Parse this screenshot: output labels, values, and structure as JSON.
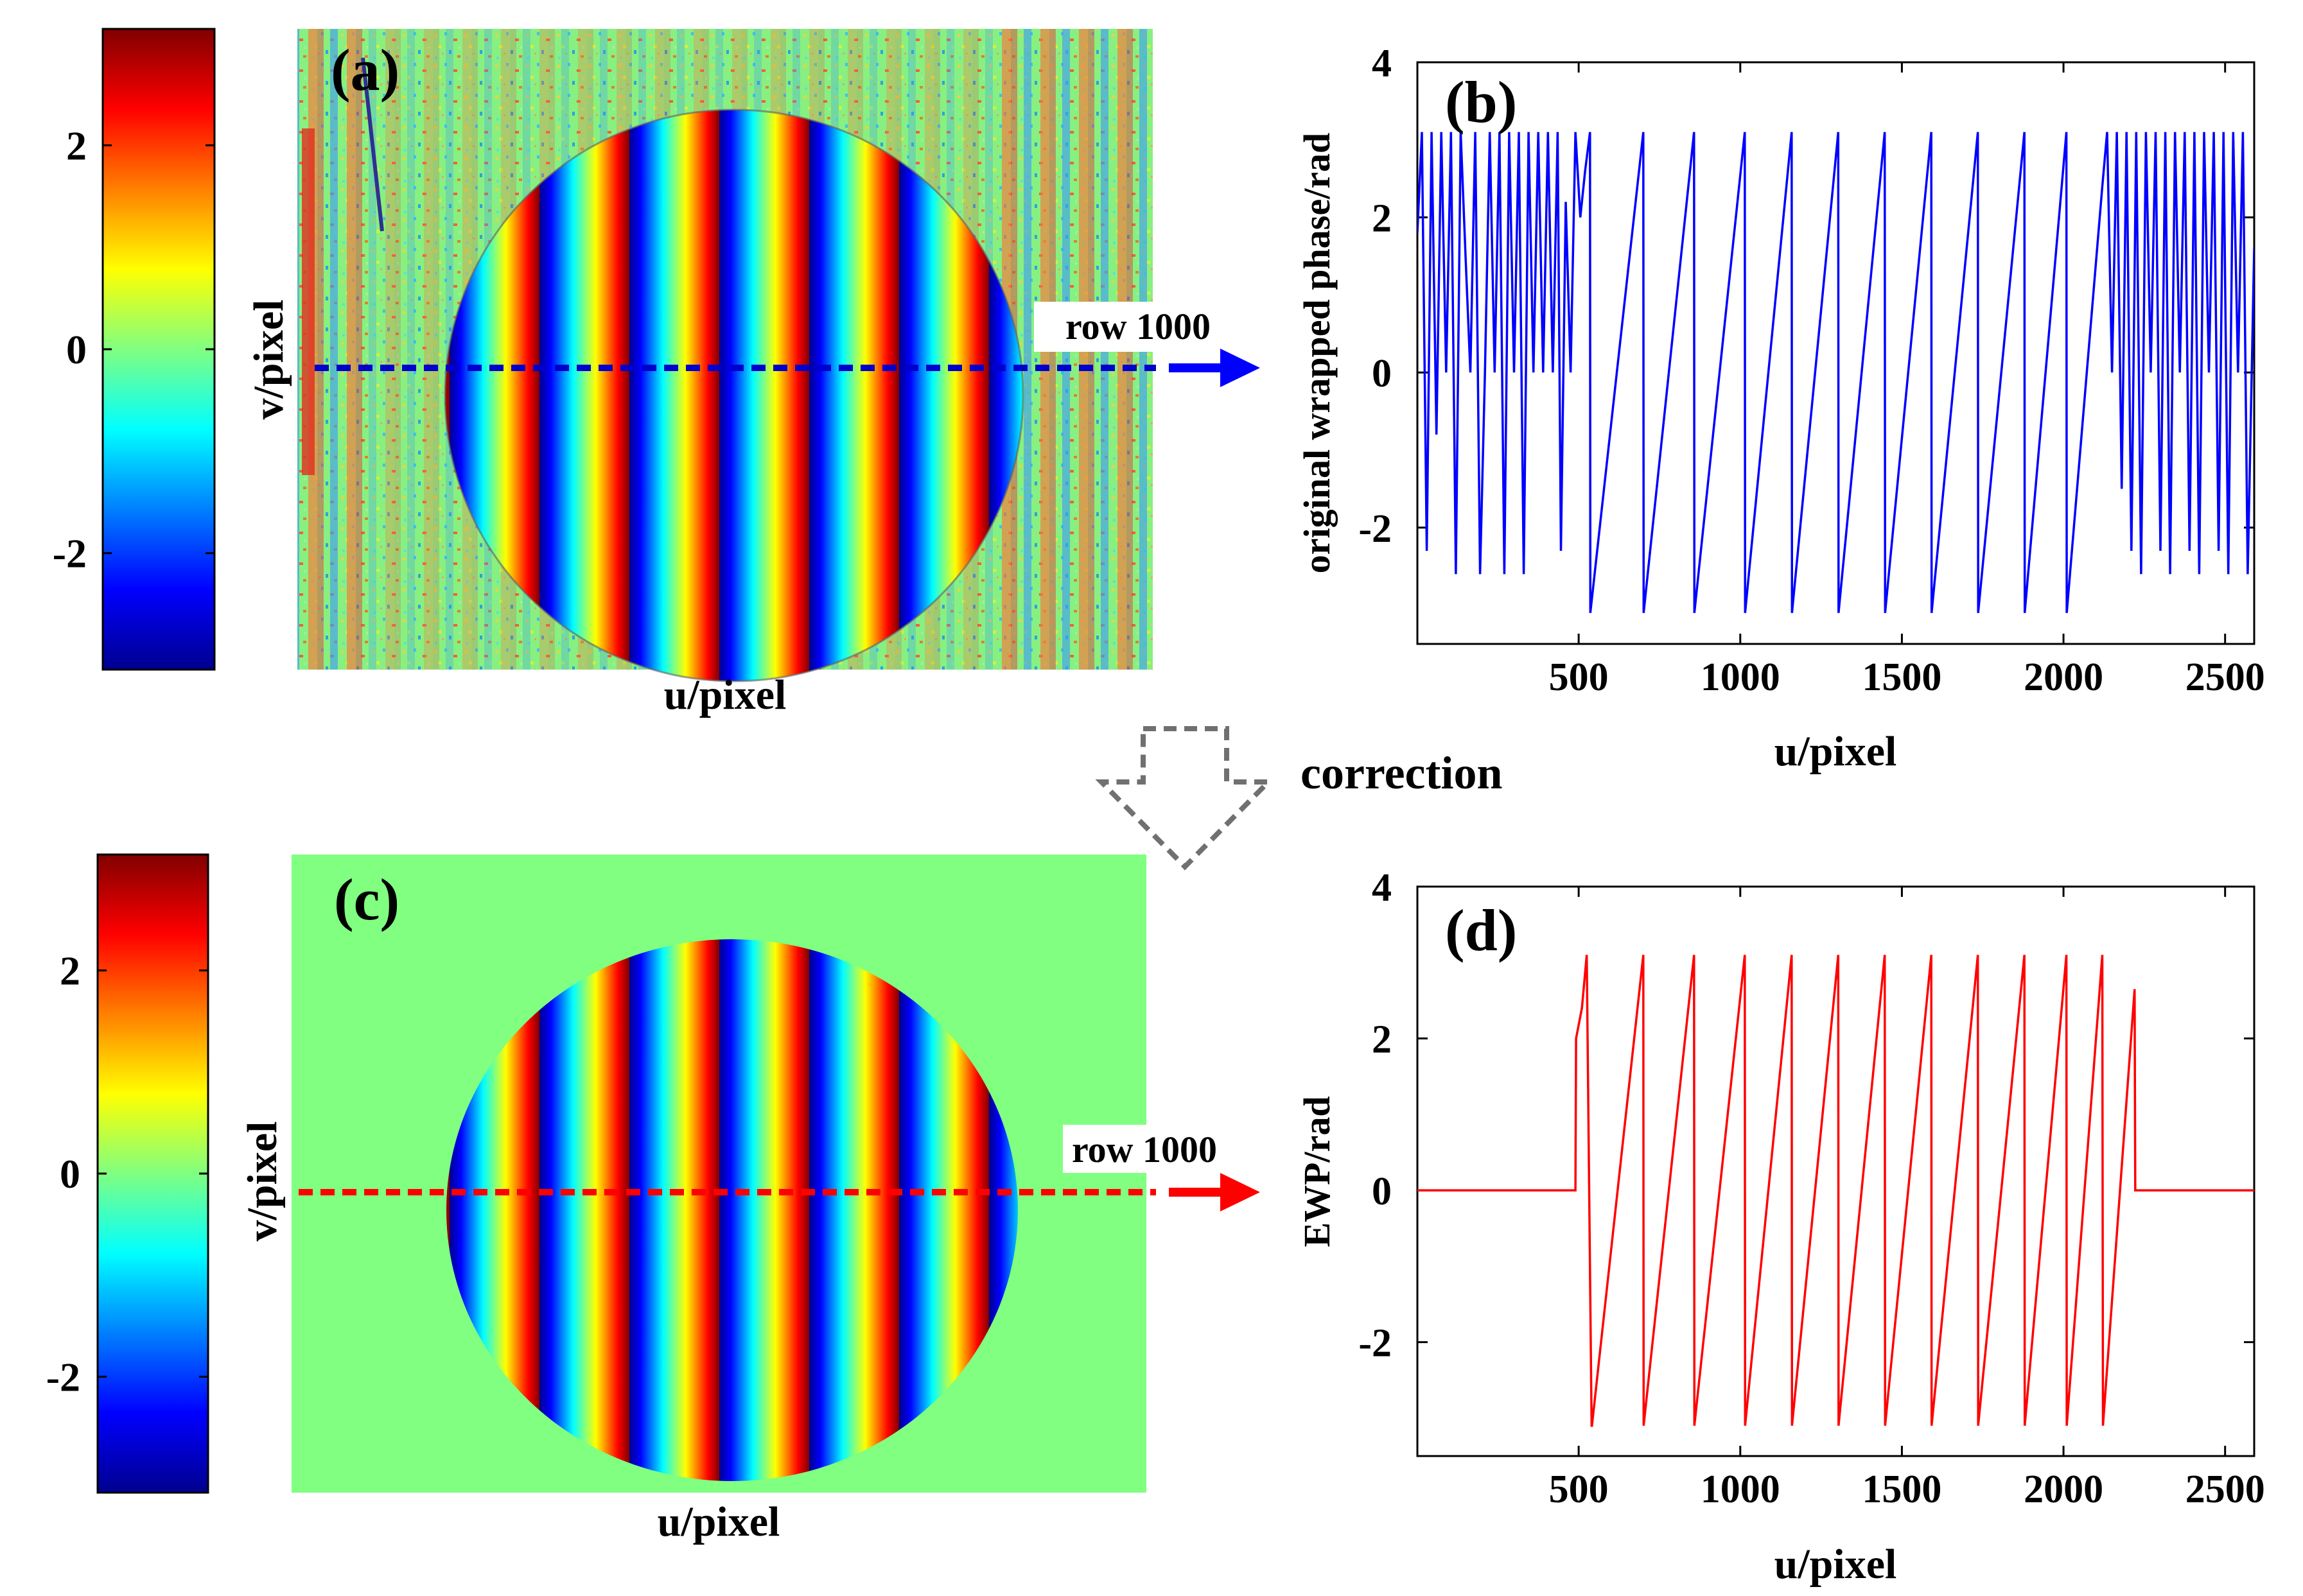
{
  "figure": {
    "correction_label": "correction",
    "colorbar": {
      "ticks": [
        "2",
        "0",
        "-2"
      ],
      "tick_values": [
        2,
        0,
        -2
      ],
      "range": [
        -3.1416,
        3.1416
      ]
    }
  },
  "panel_a": {
    "label": "(a)",
    "xlabel": "u/pixel",
    "ylabel": "v/pixel",
    "row_label": "row 1000",
    "line_color": "#0000cc"
  },
  "panel_c": {
    "label": "(c)",
    "xlabel": "u/pixel",
    "ylabel": "v/pixel",
    "row_label": "row 1000",
    "line_color": "#ff0000"
  },
  "chart_data": [
    {
      "id": "b",
      "type": "line",
      "label": "(b)",
      "xlabel": "u/pixel",
      "ylabel": "original wrapped phase/rad",
      "xlim": [
        1,
        2590
      ],
      "ylim": [
        -3.5,
        4
      ],
      "xticks": [
        500,
        1000,
        1500,
        2000,
        2500
      ],
      "yticks": [
        -2,
        0,
        2,
        4
      ],
      "color": "#0000ff",
      "series": [
        {
          "name": "original wrapped phase, row 1000",
          "x": [
            1,
            15,
            30,
            45,
            60,
            75,
            90,
            105,
            120,
            135,
            150,
            165,
            180,
            195,
            210,
            225,
            240,
            255,
            270,
            285,
            300,
            315,
            330,
            345,
            360,
            375,
            390,
            405,
            420,
            435,
            445,
            460,
            475,
            490,
            505,
            520,
            535,
            536,
            700,
            701,
            857,
            858,
            1014,
            1015,
            1159,
            1160,
            1303,
            1304,
            1447,
            1448,
            1591,
            1592,
            1735,
            1736,
            1879,
            1880,
            2009,
            2010,
            2120,
            2135,
            2150,
            2165,
            2180,
            2195,
            2210,
            2225,
            2240,
            2255,
            2270,
            2285,
            2300,
            2315,
            2330,
            2345,
            2360,
            2375,
            2390,
            2405,
            2420,
            2435,
            2450,
            2465,
            2480,
            2495,
            2510,
            2525,
            2540,
            2555,
            2570,
            2590
          ],
          "y": [
            1.8,
            3.1,
            -2.3,
            3.1,
            -0.8,
            3.1,
            0,
            3.1,
            -2.6,
            3.1,
            1.5,
            0,
            3.1,
            -2.6,
            0,
            3.1,
            0,
            3.1,
            -2.6,
            3.1,
            0,
            3.1,
            -2.6,
            3.1,
            0,
            3.1,
            0,
            3.1,
            0,
            3.1,
            -2.3,
            2.2,
            0,
            3.1,
            2.0,
            2.6,
            3.1,
            -3.1,
            3.1,
            -3.1,
            3.1,
            -3.1,
            3.1,
            -3.1,
            3.1,
            -3.1,
            3.1,
            -3.1,
            3.1,
            -3.1,
            3.1,
            -3.1,
            3.1,
            -3.1,
            3.1,
            -3.1,
            3.1,
            -3.1,
            2.4,
            3.1,
            0,
            3.1,
            -1.5,
            3.1,
            -2.3,
            3.1,
            -2.6,
            3.1,
            0,
            3.1,
            -2.3,
            3.1,
            -2.6,
            3.1,
            0,
            3.1,
            -2.3,
            3.1,
            -2.6,
            3.1,
            0,
            3.1,
            -2.3,
            3.1,
            -2.6,
            3.1,
            0,
            3.1,
            -2.6,
            1.6
          ]
        }
      ]
    },
    {
      "id": "d",
      "type": "line",
      "label": "(d)",
      "xlabel": "u/pixel",
      "ylabel": "EWP/rad",
      "xlim": [
        1,
        2590
      ],
      "ylim": [
        -3.5,
        4
      ],
      "xticks": [
        500,
        1000,
        1500,
        2000,
        2500
      ],
      "yticks": [
        -2,
        0,
        2,
        4
      ],
      "color": "#ff0000",
      "series": [
        {
          "name": "EWP, row 1000",
          "x": [
            1,
            490,
            492,
            510,
            525,
            540,
            541,
            700,
            701,
            857,
            858,
            1014,
            1015,
            1159,
            1160,
            1303,
            1304,
            1447,
            1448,
            1591,
            1592,
            1735,
            1736,
            1879,
            1880,
            2009,
            2010,
            2120,
            2122,
            2220,
            2222,
            2590
          ],
          "y": [
            0,
            0,
            2.0,
            2.4,
            3.1,
            -3.1,
            -3.1,
            3.1,
            -3.1,
            3.1,
            -3.1,
            3.1,
            -3.1,
            3.1,
            -3.1,
            3.1,
            -3.1,
            3.1,
            -3.1,
            3.1,
            -3.1,
            3.1,
            -3.1,
            3.1,
            -3.1,
            3.1,
            -3.1,
            3.1,
            -3.1,
            2.65,
            0,
            0
          ]
        }
      ]
    }
  ]
}
